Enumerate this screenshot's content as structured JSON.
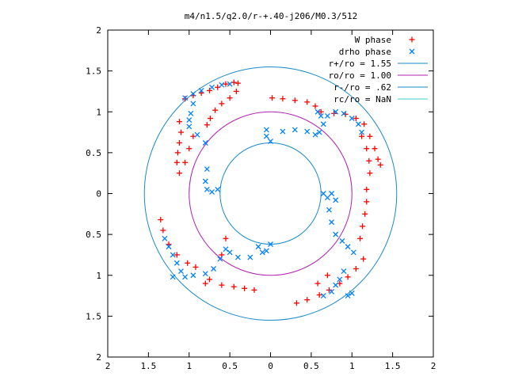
{
  "chart_data": {
    "type": "scatter",
    "title": "m4/n1.5/q2.0/r-+.40-j206/M0.3/512",
    "xlabel": "",
    "ylabel": "",
    "xlim": [
      -2,
      2
    ],
    "ylim": [
      -2,
      2
    ],
    "x_ticks": [
      -2,
      -1.5,
      -1,
      -0.5,
      0,
      0.5,
      1,
      1.5,
      2
    ],
    "y_ticks": [
      -2,
      -1.5,
      -1,
      -0.5,
      0,
      0.5,
      1,
      1.5,
      2
    ],
    "x_tick_labels": [
      "2",
      "1.5",
      "1",
      "0.5",
      "0",
      "0.5",
      "1",
      "1.5",
      "2"
    ],
    "y_tick_labels": [
      "2",
      "1.5",
      "1",
      "0.5",
      "0",
      "0.5",
      "1",
      "1.5",
      "2"
    ],
    "grid": false,
    "legend_position": "top-right",
    "legend": [
      {
        "label": "W phase",
        "kind": "marker",
        "marker": "plus",
        "color": "#ff0000"
      },
      {
        "label": "drho phase",
        "kind": "marker",
        "marker": "cross",
        "color": "#0080ff"
      },
      {
        "label": "r+/ro = 1.55",
        "kind": "line",
        "color": "#1a8ac8",
        "radius": 1.55
      },
      {
        "label": "ro/ro = 1.00",
        "kind": "line",
        "color": "#b020b0",
        "radius": 1.0
      },
      {
        "label": "r-/ro = .62",
        "kind": "line",
        "color": "#1a8ac8",
        "radius": 0.62
      },
      {
        "label": "rc/ro = NaN",
        "kind": "line",
        "color": "#40d0d0",
        "radius": null
      }
    ],
    "series": [
      {
        "name": "W phase",
        "marker": "plus",
        "color": "#ff0000",
        "points": [
          [
            -1.05,
            1.16
          ],
          [
            -0.95,
            1.2
          ],
          [
            -0.85,
            1.23
          ],
          [
            -0.75,
            1.26
          ],
          [
            -0.65,
            1.3
          ],
          [
            -0.55,
            1.34
          ],
          [
            -0.45,
            1.36
          ],
          [
            -0.4,
            1.35
          ],
          [
            -0.42,
            1.25
          ],
          [
            -0.5,
            1.17
          ],
          [
            -0.6,
            1.1
          ],
          [
            -0.68,
            1.02
          ],
          [
            -0.74,
            0.92
          ],
          [
            -0.78,
            0.84
          ],
          [
            -1.12,
            0.88
          ],
          [
            -1.1,
            0.75
          ],
          [
            -1.12,
            0.62
          ],
          [
            -1.14,
            0.5
          ],
          [
            -1.15,
            0.38
          ],
          [
            -1.12,
            0.25
          ],
          [
            -1.05,
            0.38
          ],
          [
            -1.0,
            0.55
          ],
          [
            -0.95,
            0.7
          ],
          [
            0.02,
            1.17
          ],
          [
            0.15,
            1.16
          ],
          [
            0.3,
            1.14
          ],
          [
            0.45,
            1.12
          ],
          [
            0.55,
            1.07
          ],
          [
            0.62,
            1.0
          ],
          [
            0.78,
            0.98
          ],
          [
            0.92,
            0.97
          ],
          [
            1.05,
            0.92
          ],
          [
            1.15,
            0.85
          ],
          [
            1.22,
            0.7
          ],
          [
            1.28,
            0.55
          ],
          [
            1.32,
            0.42
          ],
          [
            1.35,
            0.35
          ],
          [
            1.12,
            0.7
          ],
          [
            1.18,
            0.55
          ],
          [
            1.21,
            0.4
          ],
          [
            1.22,
            0.25
          ],
          [
            1.18,
            0.05
          ],
          [
            1.18,
            -0.1
          ],
          [
            1.16,
            -0.25
          ],
          [
            1.13,
            -0.4
          ],
          [
            1.1,
            -0.55
          ],
          [
            1.14,
            -0.8
          ],
          [
            1.05,
            -0.92
          ],
          [
            0.95,
            -1.02
          ],
          [
            0.85,
            -1.1
          ],
          [
            0.72,
            -1.18
          ],
          [
            0.6,
            -1.24
          ],
          [
            0.45,
            -1.3
          ],
          [
            0.32,
            -1.34
          ],
          [
            0.58,
            -1.1
          ],
          [
            0.7,
            -1.0
          ],
          [
            -1.35,
            -0.32
          ],
          [
            -1.32,
            -0.45
          ],
          [
            -1.25,
            -0.62
          ],
          [
            -1.15,
            -0.75
          ],
          [
            -1.02,
            -0.85
          ],
          [
            -0.92,
            -0.9
          ],
          [
            -0.75,
            -1.05
          ],
          [
            -0.6,
            -1.12
          ],
          [
            -0.45,
            -1.14
          ],
          [
            -0.32,
            -1.16
          ],
          [
            -0.2,
            -1.18
          ],
          [
            -0.8,
            -1.1
          ],
          [
            -0.55,
            -0.55
          ],
          [
            -0.6,
            -0.75
          ]
        ]
      },
      {
        "name": "drho phase",
        "marker": "cross",
        "color": "#0080ff",
        "points": [
          [
            -1.05,
            1.17
          ],
          [
            -0.95,
            1.22
          ],
          [
            -0.85,
            1.26
          ],
          [
            -0.72,
            1.3
          ],
          [
            -0.6,
            1.33
          ],
          [
            -0.5,
            1.34
          ],
          [
            -0.95,
            1.1
          ],
          [
            -0.98,
            0.98
          ],
          [
            -1.0,
            0.9
          ],
          [
            -1.0,
            0.82
          ],
          [
            -0.9,
            0.72
          ],
          [
            -0.8,
            0.62
          ],
          [
            -0.78,
            0.3
          ],
          [
            -0.8,
            0.15
          ],
          [
            -0.78,
            0.05
          ],
          [
            -0.72,
            0.02
          ],
          [
            -0.65,
            0.05
          ],
          [
            -0.05,
            0.78
          ],
          [
            -0.05,
            0.7
          ],
          [
            0.0,
            0.64
          ],
          [
            0.15,
            0.76
          ],
          [
            0.3,
            0.78
          ],
          [
            0.45,
            0.76
          ],
          [
            0.55,
            0.72
          ],
          [
            0.6,
            0.75
          ],
          [
            0.65,
            0.85
          ],
          [
            0.7,
            0.95
          ],
          [
            0.8,
            1.0
          ],
          [
            0.9,
            0.98
          ],
          [
            1.0,
            0.92
          ],
          [
            1.08,
            0.85
          ],
          [
            1.12,
            0.75
          ],
          [
            0.62,
            0.95
          ],
          [
            0.58,
            1.0
          ],
          [
            0.65,
            0.0
          ],
          [
            0.7,
            -0.05
          ],
          [
            0.75,
            0.0
          ],
          [
            0.8,
            -0.08
          ],
          [
            0.72,
            -0.2
          ],
          [
            0.75,
            -0.35
          ],
          [
            0.8,
            -0.5
          ],
          [
            0.88,
            -0.58
          ],
          [
            0.95,
            -0.65
          ],
          [
            1.02,
            -0.72
          ],
          [
            0.9,
            -0.95
          ],
          [
            0.85,
            -1.05
          ],
          [
            0.8,
            -1.12
          ],
          [
            0.75,
            -1.2
          ],
          [
            0.65,
            -1.25
          ],
          [
            1.0,
            -1.22
          ],
          [
            0.95,
            -1.25
          ],
          [
            -0.15,
            -0.65
          ],
          [
            -0.05,
            -0.7
          ],
          [
            0.0,
            -0.62
          ],
          [
            -0.1,
            -0.72
          ],
          [
            -0.25,
            -0.78
          ],
          [
            -0.4,
            -0.78
          ],
          [
            -0.5,
            -0.72
          ],
          [
            -0.55,
            -0.68
          ],
          [
            -0.62,
            -0.8
          ],
          [
            -0.7,
            -0.92
          ],
          [
            -0.8,
            -0.98
          ],
          [
            -0.95,
            -1.0
          ],
          [
            -1.05,
            -1.02
          ],
          [
            -1.1,
            -0.95
          ],
          [
            -1.15,
            -0.85
          ],
          [
            -1.2,
            -0.75
          ],
          [
            -1.25,
            -0.65
          ],
          [
            -1.2,
            -1.02
          ],
          [
            -1.3,
            -0.55
          ]
        ]
      }
    ]
  }
}
